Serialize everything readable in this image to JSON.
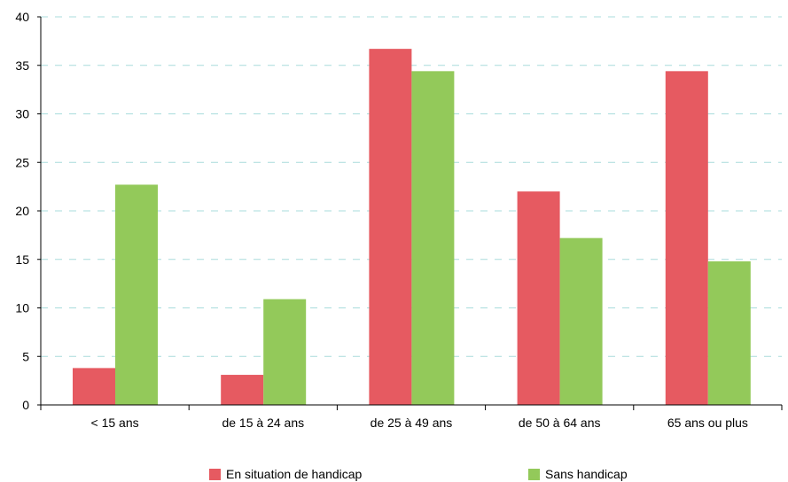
{
  "chart_data": {
    "type": "bar",
    "categories": [
      "< 15 ans",
      "de 15 à 24 ans",
      "de 25 à 49 ans",
      "de 50 à 64 ans",
      "65 ans ou plus"
    ],
    "series": [
      {
        "name": "En situation de handicap",
        "color": "#e65a61",
        "values": [
          3.8,
          3.1,
          36.7,
          22.0,
          34.4
        ]
      },
      {
        "name": "Sans handicap",
        "color": "#93c95a",
        "values": [
          22.7,
          10.9,
          34.4,
          17.2,
          14.8
        ]
      }
    ],
    "ylim": [
      0,
      40
    ],
    "yticks": [
      "0",
      "5",
      "10",
      "15",
      "20",
      "25",
      "30",
      "35",
      "40"
    ],
    "grid": true,
    "grid_color": "#a9dcdc",
    "legend_position": "bottom"
  }
}
